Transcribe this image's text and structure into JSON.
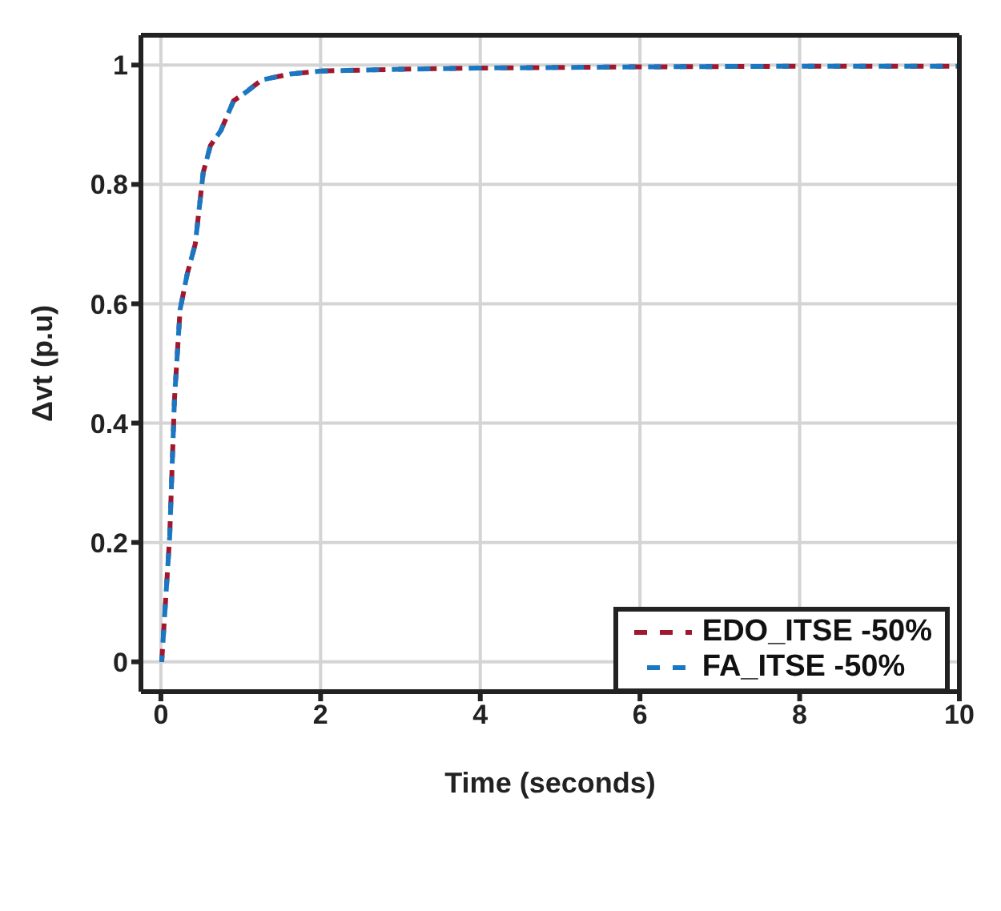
{
  "chart_data": {
    "type": "line",
    "xlabel": "Time (seconds)",
    "ylabel": "Δvt (p.u)",
    "xlim": [
      -0.25,
      10
    ],
    "xticks": [
      0,
      2,
      4,
      6,
      8,
      10
    ],
    "ylim": [
      -0.05,
      1.05
    ],
    "yticks": [
      0,
      0.2,
      0.4,
      0.6,
      0.8,
      1
    ],
    "grid": true,
    "legend": "bottom right",
    "line_style": "dashed",
    "marker": "none",
    "x": [
      0.01,
      0.11,
      0.17,
      0.24,
      0.33,
      0.43,
      0.53,
      0.62,
      0.75,
      0.91,
      1.07,
      1.26,
      1.62,
      2,
      3,
      4,
      6,
      8,
      10
    ],
    "series": [
      {
        "name": "EDO_ITSE -50%",
        "color": "#a0182f",
        "values": [
          0,
          0.21,
          0.44,
          0.59,
          0.65,
          0.7,
          0.82,
          0.865,
          0.89,
          0.94,
          0.955,
          0.975,
          0.985,
          0.99,
          0.993,
          0.995,
          0.997,
          0.998,
          0.998
        ]
      },
      {
        "name": "FA_ITSE -50%",
        "color": "#1a78c2",
        "values": [
          0,
          0.21,
          0.44,
          0.59,
          0.65,
          0.7,
          0.82,
          0.865,
          0.89,
          0.94,
          0.955,
          0.975,
          0.985,
          0.99,
          0.993,
          0.995,
          0.997,
          0.998,
          0.998
        ]
      }
    ]
  }
}
